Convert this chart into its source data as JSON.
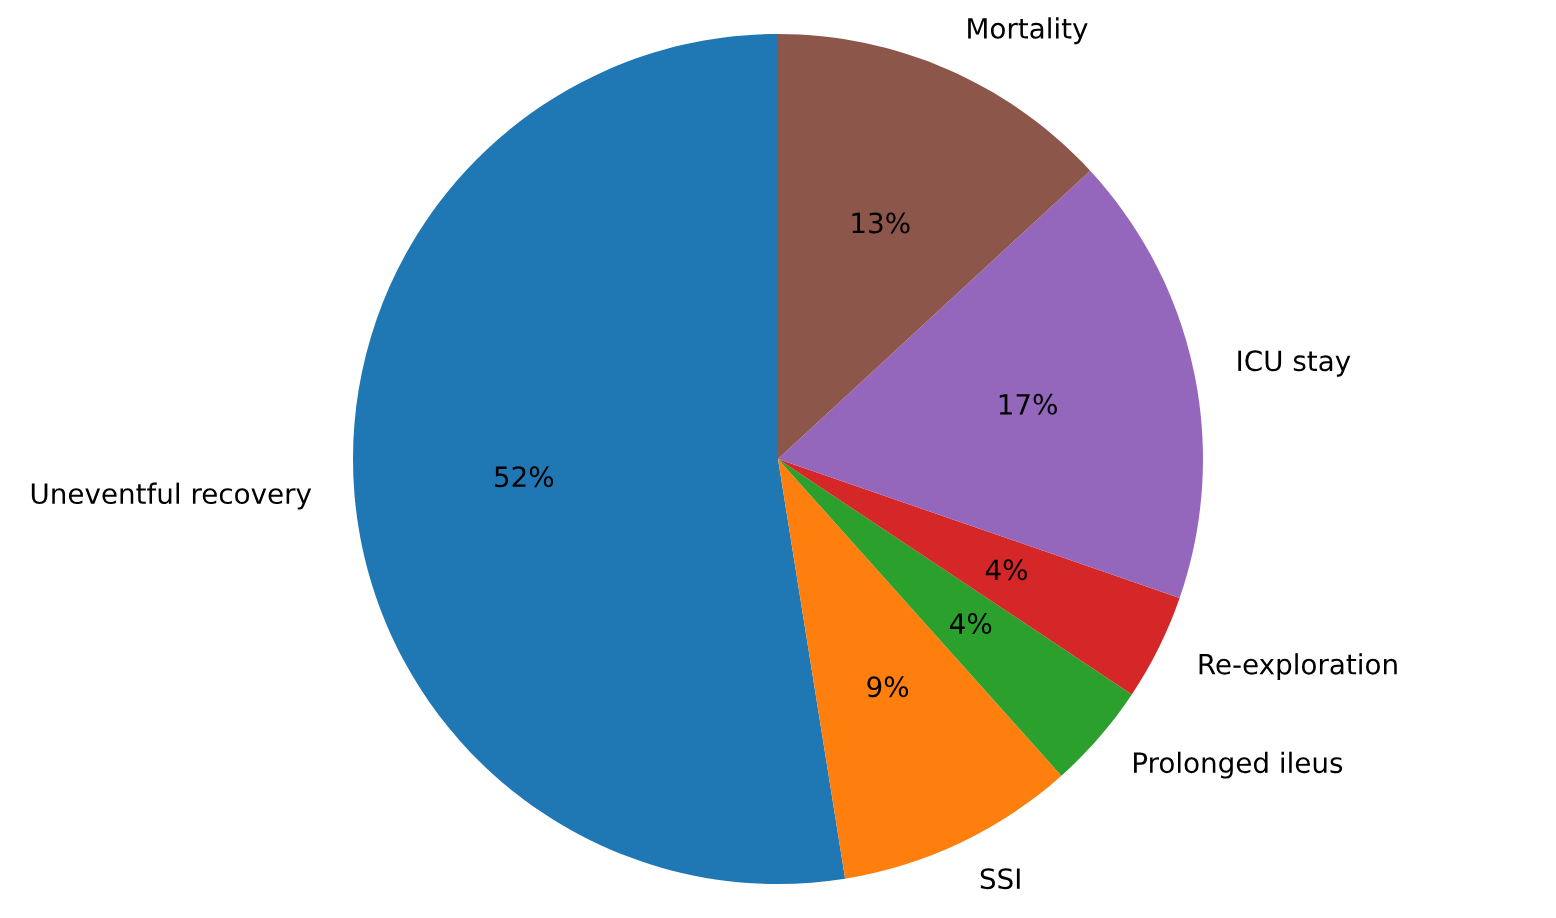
{
  "chart_data": {
    "type": "pie",
    "categories": [
      "Uneventful recovery",
      "SSI",
      "Prolonged ileus",
      "Re-exploration",
      "ICU stay",
      "Mortality"
    ],
    "values": [
      52,
      9,
      4,
      4,
      17,
      13
    ],
    "value_labels": [
      "52%",
      "9%",
      "4%",
      "4%",
      "17%",
      "13%"
    ],
    "colors": [
      "#1f77b4",
      "#ff7f0e",
      "#2ca02c",
      "#d62728",
      "#9467bd",
      "#8c564b"
    ]
  }
}
